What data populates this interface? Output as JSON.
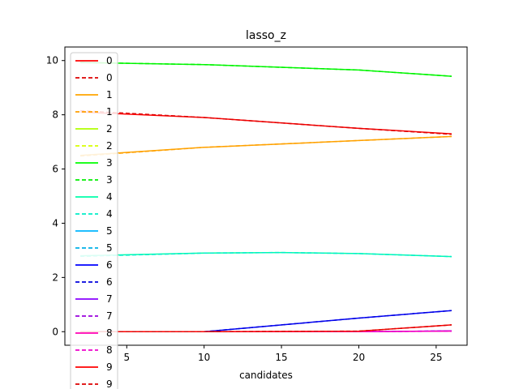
{
  "chart_data": {
    "type": "line",
    "title": "lasso_z",
    "xlabel": "candidates",
    "ylabel": "",
    "xlim": [
      1,
      27
    ],
    "ylim": [
      -0.5,
      10.5
    ],
    "xticks": [
      5,
      10,
      15,
      20,
      25
    ],
    "yticks": [
      0,
      2,
      4,
      6,
      8,
      10
    ],
    "legend_position": "upper-left",
    "grid": false,
    "series": [
      {
        "name": "0",
        "style": "solid",
        "color": "#ff0000",
        "x": [
          2,
          10,
          20,
          26
        ],
        "y": [
          8.1,
          7.9,
          7.5,
          7.3
        ]
      },
      {
        "name": "0",
        "style": "dashed",
        "color": "#dd0000",
        "x": [
          2,
          10,
          20,
          26
        ],
        "y": [
          8.15,
          7.9,
          7.5,
          7.28
        ]
      },
      {
        "name": "1",
        "style": "solid",
        "color": "#ffa500",
        "x": [
          2,
          10,
          20,
          26
        ],
        "y": [
          6.5,
          6.8,
          7.05,
          7.2
        ]
      },
      {
        "name": "1",
        "style": "dashed",
        "color": "#ff9f00",
        "x": [
          2,
          10,
          20,
          26
        ],
        "y": [
          6.48,
          6.8,
          7.05,
          7.2
        ]
      },
      {
        "name": "2",
        "style": "solid",
        "color": "#b0ff00",
        "x": [],
        "y": []
      },
      {
        "name": "2",
        "style": "dashed",
        "color": "#d8ff00",
        "x": [],
        "y": []
      },
      {
        "name": "3",
        "style": "solid",
        "color": "#00ff00",
        "x": [
          2,
          10,
          20,
          26
        ],
        "y": [
          9.93,
          9.85,
          9.65,
          9.42
        ]
      },
      {
        "name": "3",
        "style": "dashed",
        "color": "#00ee00",
        "x": [
          2,
          10,
          20,
          26
        ],
        "y": [
          9.93,
          9.85,
          9.65,
          9.42
        ]
      },
      {
        "name": "4",
        "style": "solid",
        "color": "#00ffaa",
        "x": [
          2,
          10,
          15,
          20,
          26
        ],
        "y": [
          2.8,
          2.9,
          2.92,
          2.88,
          2.77
        ]
      },
      {
        "name": "4",
        "style": "dashed",
        "color": "#00eec8",
        "x": [
          2,
          10,
          15,
          20,
          26
        ],
        "y": [
          2.78,
          2.9,
          2.92,
          2.88,
          2.77
        ]
      },
      {
        "name": "5",
        "style": "solid",
        "color": "#00b4ff",
        "x": [],
        "y": []
      },
      {
        "name": "5",
        "style": "dashed",
        "color": "#00b0e8",
        "x": [],
        "y": []
      },
      {
        "name": "6",
        "style": "solid",
        "color": "#0000ff",
        "x": [
          2,
          10,
          20,
          26
        ],
        "y": [
          0.0,
          0.0,
          0.5,
          0.78
        ]
      },
      {
        "name": "6",
        "style": "dashed",
        "color": "#0000dd",
        "x": [
          2,
          10,
          20,
          26
        ],
        "y": [
          0.0,
          0.0,
          0.5,
          0.78
        ]
      },
      {
        "name": "7",
        "style": "solid",
        "color": "#8a00ff",
        "x": [
          2,
          10,
          20,
          26
        ],
        "y": [
          0.0,
          0.0,
          0.0,
          0.03
        ]
      },
      {
        "name": "7",
        "style": "dashed",
        "color": "#9a00dd",
        "x": [
          2,
          10,
          20,
          26
        ],
        "y": [
          0.0,
          0.0,
          0.0,
          0.03
        ]
      },
      {
        "name": "8",
        "style": "solid",
        "color": "#ff00b4",
        "x": [
          2,
          10,
          20,
          26
        ],
        "y": [
          0.0,
          0.0,
          0.0,
          0.02
        ]
      },
      {
        "name": "8",
        "style": "dashed",
        "color": "#ee00cc",
        "x": [
          2,
          10,
          20,
          26
        ],
        "y": [
          0.0,
          0.0,
          0.0,
          0.02
        ]
      },
      {
        "name": "9",
        "style": "solid",
        "color": "#ff0000",
        "x": [
          2,
          10,
          20,
          26
        ],
        "y": [
          0.0,
          0.0,
          0.02,
          0.25
        ]
      },
      {
        "name": "9",
        "style": "dashed",
        "color": "#dd0000",
        "x": [
          2,
          10,
          20,
          26
        ],
        "y": [
          0.0,
          0.0,
          0.02,
          0.25
        ]
      }
    ]
  }
}
